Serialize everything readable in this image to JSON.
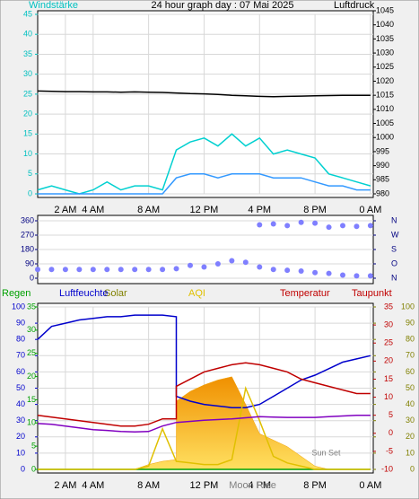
{
  "chart_data": [
    {
      "type": "line",
      "title": "24 hour graph day : 07 Mai 2025",
      "ylabel": "Windstärke",
      "y2label": "Luftdruck",
      "axis_colors": {
        "y": "#00c0c0",
        "y2": "#000000"
      },
      "grid": true,
      "xlim": [
        0,
        24.2
      ],
      "xticks": [
        {
          "value": 2,
          "label": "2 AM"
        },
        {
          "value": 4,
          "label": "4 AM"
        },
        {
          "value": 8,
          "label": "8 AM"
        },
        {
          "value": 12,
          "label": "12 PM"
        },
        {
          "value": 16,
          "label": "4 PM"
        },
        {
          "value": 20,
          "label": "8 PM"
        },
        {
          "value": 24,
          "label": "0 AM"
        }
      ],
      "ylim": [
        0,
        45
      ],
      "yticks": [
        0,
        5,
        10,
        15,
        20,
        25,
        30,
        35,
        40,
        45
      ],
      "y2lim": [
        980,
        1045
      ],
      "y2ticks": [
        980,
        985,
        990,
        995,
        1000,
        1005,
        1010,
        1015,
        1020,
        1025,
        1030,
        1035,
        1040,
        1045
      ],
      "x": [
        0,
        1,
        2,
        3,
        4,
        5,
        6,
        7,
        8,
        9,
        10,
        11,
        12,
        13,
        14,
        15,
        16,
        17,
        18,
        19,
        20,
        21,
        22,
        23,
        24
      ],
      "series": [
        {
          "color": "#00d0d0",
          "values": [
            1,
            2,
            1,
            0,
            1,
            3,
            1,
            2,
            2,
            1,
            11,
            13,
            14,
            12,
            15,
            12,
            14,
            10,
            11,
            10,
            9,
            5,
            4,
            3,
            2
          ]
        },
        {
          "color": "#3399ff",
          "values": [
            0,
            0,
            0,
            0,
            0,
            0,
            0,
            0,
            0,
            0,
            4,
            5,
            5,
            4,
            5,
            5,
            5,
            4,
            4,
            4,
            3,
            2,
            2,
            1,
            1
          ]
        },
        {
          "color": "#000000",
          "axis": "y2",
          "values": [
            1016.5,
            1016.4,
            1016.3,
            1016.3,
            1016.2,
            1016.2,
            1016.1,
            1016.2,
            1016.1,
            1016,
            1015.8,
            1015.6,
            1015.5,
            1015.3,
            1015,
            1014.8,
            1014.6,
            1014.5,
            1014.6,
            1014.7,
            1014.8,
            1014.9,
            1015,
            1015,
            1015
          ]
        }
      ]
    },
    {
      "type": "scatter",
      "color": "#7f7fff",
      "grid": true,
      "xlim": [
        0,
        24.2
      ],
      "ylim": [
        0,
        360
      ],
      "yticks": [
        0,
        90,
        180,
        270,
        360
      ],
      "y2lim": [
        0,
        360
      ],
      "y2ticks": [
        {
          "value": 0,
          "label": "N"
        },
        {
          "value": 90,
          "label": "O"
        },
        {
          "value": 180,
          "label": "S"
        },
        {
          "value": 270,
          "label": "W"
        },
        {
          "value": 360,
          "label": "N"
        }
      ],
      "axis_colors": {
        "y": "#000080",
        "y2": "#000080"
      },
      "x": [
        0,
        1,
        2,
        3,
        4,
        5,
        6,
        7,
        8,
        9,
        10,
        11,
        12,
        13,
        14,
        15,
        16,
        17,
        18,
        19,
        20,
        21,
        22,
        23,
        24,
        16,
        17,
        18,
        19,
        20,
        21,
        22,
        23,
        24
      ],
      "values": [
        55,
        55,
        55,
        55,
        55,
        55,
        55,
        55,
        55,
        55,
        60,
        80,
        70,
        90,
        110,
        100,
        70,
        55,
        50,
        45,
        35,
        30,
        20,
        15,
        15,
        335,
        340,
        330,
        350,
        345,
        320,
        330,
        325,
        330
      ]
    },
    {
      "type": "line",
      "grid": true,
      "xlim": [
        0,
        24.2
      ],
      "xticks": [
        {
          "value": 2,
          "label": "2 AM"
        },
        {
          "value": 4,
          "label": "4 AM"
        },
        {
          "value": 8,
          "label": "8 AM"
        },
        {
          "value": 12,
          "label": "12 PM"
        },
        {
          "value": 16,
          "label": "4 PM"
        },
        {
          "value": 20,
          "label": "8 PM"
        },
        {
          "value": 24,
          "label": "0 AM"
        }
      ],
      "ylim": [
        0,
        100
      ],
      "yticks": [
        0,
        10,
        20,
        30,
        40,
        50,
        60,
        70,
        80,
        90,
        100
      ],
      "y2lim": [
        -10,
        35
      ],
      "y2ticks": [
        -10,
        -5,
        0,
        5,
        10,
        15,
        20,
        25,
        30,
        35
      ],
      "y3lim": [
        0,
        35
      ],
      "y3ticks": [
        0,
        5,
        10,
        15,
        20,
        25,
        30,
        35
      ],
      "y4lim": [
        0,
        100
      ],
      "y4ticks": [
        0,
        10,
        20,
        30,
        40,
        50,
        60,
        70,
        80,
        90,
        100
      ],
      "axis_colors": {
        "y": "#0000cc",
        "y2": "#c00000",
        "y3": "#00a000",
        "y4": "#808000"
      },
      "x": [
        0,
        1,
        2,
        3,
        4,
        5,
        6,
        7,
        8,
        9,
        10,
        10,
        11,
        12,
        13,
        14,
        15,
        16,
        17,
        18,
        19,
        20,
        21,
        22,
        23,
        24
      ],
      "series": [
        {
          "name": "Regen",
          "color": "#00a000",
          "axis": "y3",
          "values": [
            0,
            0,
            0,
            0,
            0,
            0,
            0,
            0,
            0,
            0,
            0,
            0,
            0,
            0,
            0,
            0,
            0,
            0,
            0,
            0,
            0,
            0,
            0,
            0,
            0,
            0
          ]
        },
        {
          "name": "Luftfeuchte",
          "color": "#0000cc",
          "values": [
            80,
            88,
            90,
            92,
            93,
            94,
            94,
            95,
            95,
            95,
            94,
            45,
            42,
            40,
            39,
            38,
            38,
            40,
            45,
            50,
            55,
            58,
            62,
            66,
            68,
            70
          ]
        },
        {
          "name": "Solar",
          "color": "#f0a000",
          "axis": "y4",
          "style": "area",
          "values": [
            0,
            0,
            0,
            0,
            0,
            0,
            0,
            0,
            3,
            5,
            6,
            42,
            48,
            52,
            55,
            57,
            40,
            22,
            18,
            14,
            8,
            2,
            0,
            0,
            0,
            0
          ]
        },
        {
          "name": "AQI",
          "color": "#e0c000",
          "axis": "y4",
          "values": [
            0,
            0,
            0,
            0,
            0,
            0,
            0,
            0,
            2,
            25,
            5,
            5,
            4,
            3,
            3,
            6,
            50,
            30,
            8,
            4,
            2,
            0,
            0,
            0,
            0,
            0
          ]
        },
        {
          "name": "Temperatur",
          "color": "#c00000",
          "axis": "y2",
          "values": [
            5,
            4.5,
            4,
            3.5,
            3,
            2.5,
            2,
            2,
            2.5,
            4,
            4,
            13,
            15,
            17,
            18,
            19,
            19.5,
            19,
            18,
            17,
            15,
            14,
            13,
            12,
            11,
            11
          ]
        },
        {
          "name": "Taupunkt",
          "color": "#8000c0",
          "axis": "y2",
          "values": [
            2.7,
            2.5,
            2,
            1.5,
            1,
            0.8,
            0.5,
            0.4,
            0.5,
            2,
            3,
            3,
            3.3,
            3.6,
            3.8,
            4,
            4.3,
            4.6,
            4.5,
            4.4,
            4.4,
            4.4,
            4.6,
            4.8,
            5,
            5
          ]
        }
      ],
      "annotations": [
        {
          "text": "Sun Set",
          "x": 20.8
        },
        {
          "text": "Moon Rise",
          "x": 15.5
        }
      ]
    }
  ]
}
